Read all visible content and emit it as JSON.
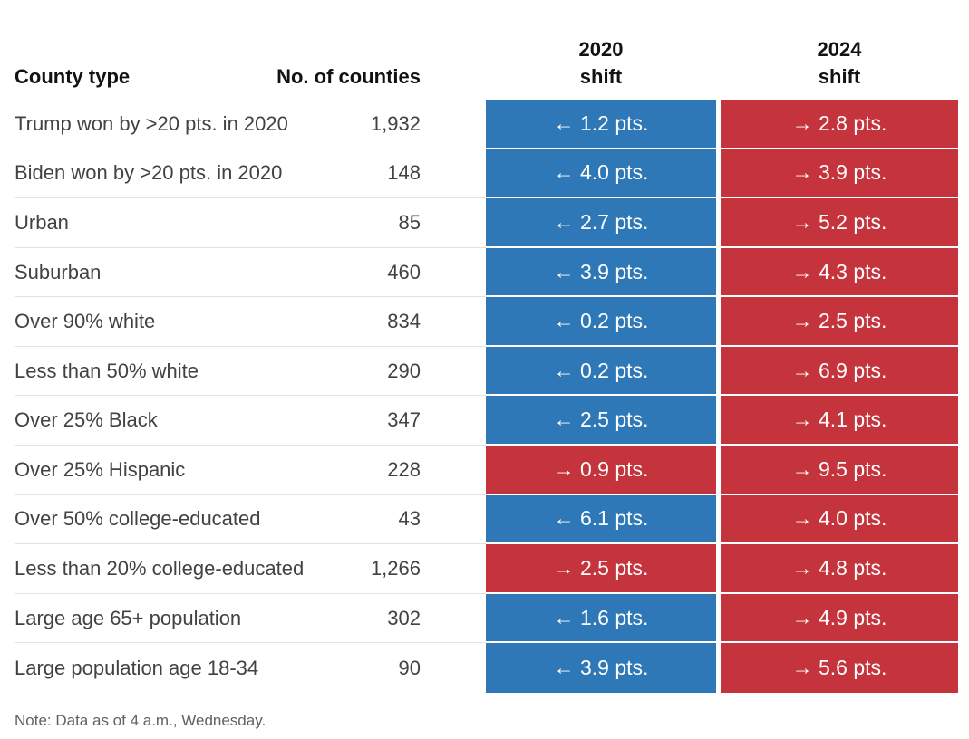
{
  "colors": {
    "dem_shift_blue": "#2e78b8",
    "rep_shift_red": "#c5343c",
    "rule_gray": "#e1e1e1",
    "header_text": "#121212",
    "body_text": "#424242",
    "note_text": "#616161"
  },
  "table": {
    "headers": {
      "county_type": "County type",
      "no_of_counties": "No. of counties",
      "shift_2020_line1": "2020",
      "shift_2020_line2": "shift",
      "shift_2024_line1": "2024",
      "shift_2024_line2": "shift"
    },
    "rows": [
      {
        "label": "Trump won by >20 pts. in 2020",
        "counties": "1,932",
        "shift_2020": "← 1.2 pts.",
        "shift_2020_dir": "left",
        "shift_2024": "→ 2.8 pts.",
        "shift_2024_dir": "right"
      },
      {
        "label": "Biden won by >20 pts. in 2020",
        "counties": "148",
        "shift_2020": "← 4.0 pts.",
        "shift_2020_dir": "left",
        "shift_2024": "→ 3.9 pts.",
        "shift_2024_dir": "right"
      },
      {
        "label": "Urban",
        "counties": "85",
        "shift_2020": "← 2.7 pts.",
        "shift_2020_dir": "left",
        "shift_2024": "→ 5.2 pts.",
        "shift_2024_dir": "right"
      },
      {
        "label": "Suburban",
        "counties": "460",
        "shift_2020": "← 3.9 pts.",
        "shift_2020_dir": "left",
        "shift_2024": "→ 4.3 pts.",
        "shift_2024_dir": "right"
      },
      {
        "label": "Over 90% white",
        "counties": "834",
        "shift_2020": "← 0.2 pts.",
        "shift_2020_dir": "left",
        "shift_2024": "→ 2.5 pts.",
        "shift_2024_dir": "right"
      },
      {
        "label": "Less than 50% white",
        "counties": "290",
        "shift_2020": "← 0.2 pts.",
        "shift_2020_dir": "left",
        "shift_2024": "→ 6.9 pts.",
        "shift_2024_dir": "right"
      },
      {
        "label": "Over 25% Black",
        "counties": "347",
        "shift_2020": "← 2.5 pts.",
        "shift_2020_dir": "left",
        "shift_2024": "→ 4.1 pts.",
        "shift_2024_dir": "right"
      },
      {
        "label": "Over 25% Hispanic",
        "counties": "228",
        "shift_2020": "→ 0.9 pts.",
        "shift_2020_dir": "right",
        "shift_2024": "→ 9.5 pts.",
        "shift_2024_dir": "right"
      },
      {
        "label": "Over 50% college-educated",
        "counties": "43",
        "shift_2020": "← 6.1 pts.",
        "shift_2020_dir": "left",
        "shift_2024": "→ 4.0 pts.",
        "shift_2024_dir": "right"
      },
      {
        "label": "Less than 20% college-educated",
        "counties": "1,266",
        "shift_2020": "→ 2.5 pts.",
        "shift_2020_dir": "right",
        "shift_2024": "→ 4.8 pts.",
        "shift_2024_dir": "right"
      },
      {
        "label": "Large age 65+ population",
        "counties": "302",
        "shift_2020": "← 1.6 pts.",
        "shift_2020_dir": "left",
        "shift_2024": "→ 4.9 pts.",
        "shift_2024_dir": "right"
      },
      {
        "label": "Large population age 18-34",
        "counties": "90",
        "shift_2020": "← 3.9 pts.",
        "shift_2020_dir": "left",
        "shift_2024": "→ 5.6 pts.",
        "shift_2024_dir": "right"
      }
    ]
  },
  "note": "Note: Data as of 4 a.m., Wednesday.",
  "chart_data": {
    "type": "table",
    "columns": [
      "County type",
      "No. of counties",
      "2020 shift",
      "2024 shift"
    ],
    "categories": [
      "Trump won by >20 pts. in 2020",
      "Biden won by >20 pts. in 2020",
      "Urban",
      "Suburban",
      "Over 90% white",
      "Less than 50% white",
      "Over 25% Black",
      "Over 25% Hispanic",
      "Over 50% college-educated",
      "Less than 20% college-educated",
      "Large age 65+ population",
      "Large population age 18-34"
    ],
    "counties": [
      1932,
      148,
      85,
      460,
      834,
      290,
      347,
      228,
      43,
      1266,
      302,
      90
    ],
    "series": [
      {
        "name": "2020 shift (pts.; negative = leftward/Democratic, positive = rightward/Republican)",
        "values": [
          -1.2,
          -4.0,
          -2.7,
          -3.9,
          -0.2,
          -0.2,
          -2.5,
          0.9,
          -6.1,
          2.5,
          -1.6,
          -3.9
        ]
      },
      {
        "name": "2024 shift (pts.; positive = rightward/Republican)",
        "values": [
          2.8,
          3.9,
          5.2,
          4.3,
          2.5,
          6.9,
          4.1,
          9.5,
          4.0,
          4.8,
          4.9,
          5.6
        ]
      }
    ],
    "legend_position": "none",
    "grid": "row rules only"
  }
}
